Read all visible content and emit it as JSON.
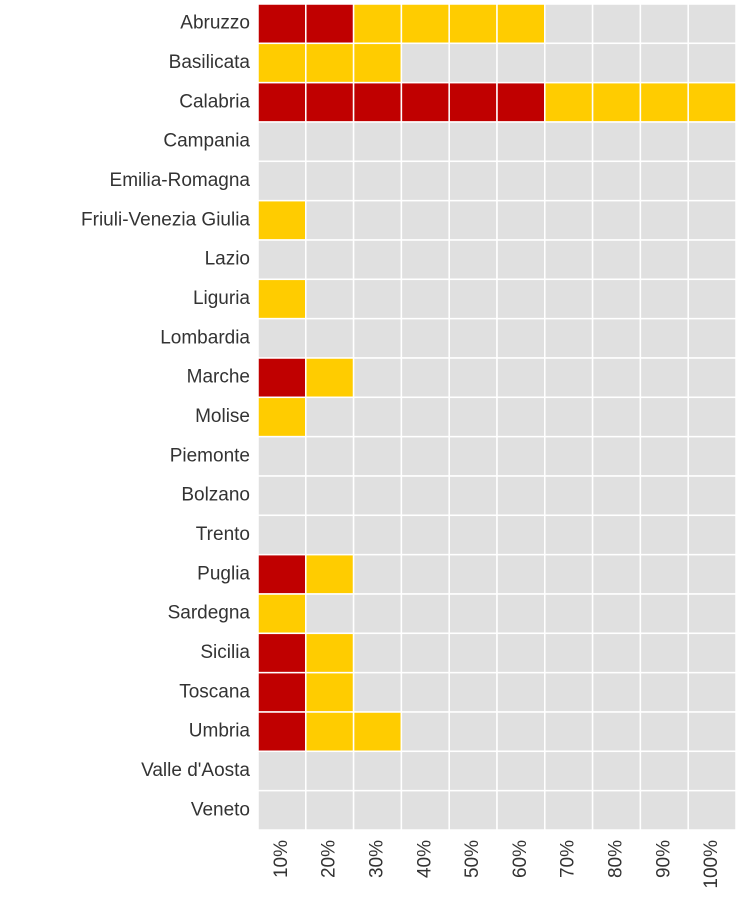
{
  "chart_data": {
    "type": "heatmap",
    "rows": [
      "Abruzzo",
      "Basilicata",
      "Calabria",
      "Campania",
      "Emilia-Romagna",
      "Friuli-Venezia Giulia",
      "Lazio",
      "Liguria",
      "Lombardia",
      "Marche",
      "Molise",
      "Piemonte",
      "Bolzano",
      "Trento",
      "Puglia",
      "Sardegna",
      "Sicilia",
      "Toscana",
      "Umbria",
      "Valle d'Aosta",
      "Veneto"
    ],
    "columns": [
      "10%",
      "20%",
      "30%",
      "40%",
      "50%",
      "60%",
      "70%",
      "80%",
      "90%",
      "100%"
    ],
    "colors": [
      "#e0e0e0",
      "#ffcc00",
      "#c00000"
    ],
    "z": [
      [
        2,
        2,
        1,
        1,
        1,
        1,
        0,
        0,
        0,
        0
      ],
      [
        1,
        1,
        1,
        0,
        0,
        0,
        0,
        0,
        0,
        0
      ],
      [
        2,
        2,
        2,
        2,
        2,
        2,
        1,
        1,
        1,
        1
      ],
      [
        0,
        0,
        0,
        0,
        0,
        0,
        0,
        0,
        0,
        0
      ],
      [
        0,
        0,
        0,
        0,
        0,
        0,
        0,
        0,
        0,
        0
      ],
      [
        1,
        0,
        0,
        0,
        0,
        0,
        0,
        0,
        0,
        0
      ],
      [
        0,
        0,
        0,
        0,
        0,
        0,
        0,
        0,
        0,
        0
      ],
      [
        1,
        0,
        0,
        0,
        0,
        0,
        0,
        0,
        0,
        0
      ],
      [
        0,
        0,
        0,
        0,
        0,
        0,
        0,
        0,
        0,
        0
      ],
      [
        2,
        1,
        0,
        0,
        0,
        0,
        0,
        0,
        0,
        0
      ],
      [
        1,
        0,
        0,
        0,
        0,
        0,
        0,
        0,
        0,
        0
      ],
      [
        0,
        0,
        0,
        0,
        0,
        0,
        0,
        0,
        0,
        0
      ],
      [
        0,
        0,
        0,
        0,
        0,
        0,
        0,
        0,
        0,
        0
      ],
      [
        0,
        0,
        0,
        0,
        0,
        0,
        0,
        0,
        0,
        0
      ],
      [
        2,
        1,
        0,
        0,
        0,
        0,
        0,
        0,
        0,
        0
      ],
      [
        1,
        0,
        0,
        0,
        0,
        0,
        0,
        0,
        0,
        0
      ],
      [
        2,
        1,
        0,
        0,
        0,
        0,
        0,
        0,
        0,
        0
      ],
      [
        2,
        1,
        0,
        0,
        0,
        0,
        0,
        0,
        0,
        0
      ],
      [
        2,
        1,
        1,
        0,
        0,
        0,
        0,
        0,
        0,
        0
      ],
      [
        0,
        0,
        0,
        0,
        0,
        0,
        0,
        0,
        0,
        0
      ],
      [
        0,
        0,
        0,
        0,
        0,
        0,
        0,
        0,
        0,
        0
      ]
    ]
  }
}
